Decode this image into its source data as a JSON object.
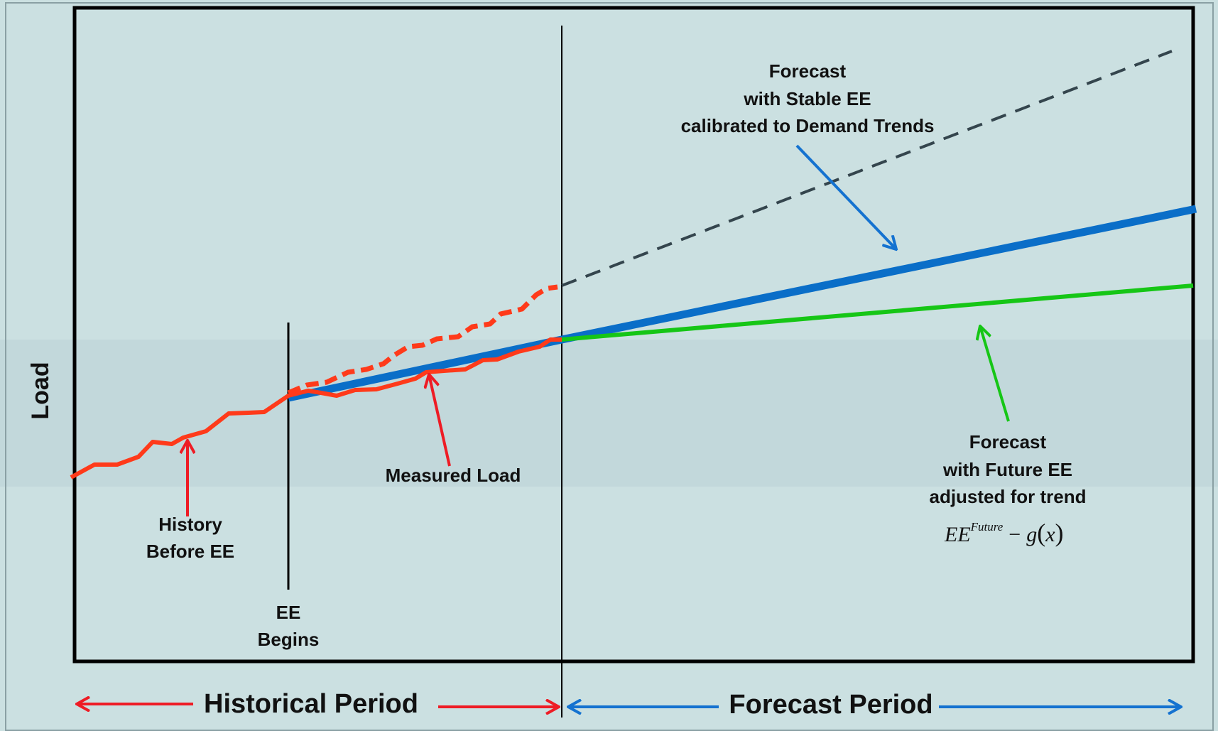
{
  "chart_data": {
    "type": "line",
    "y_axis_label": "Load",
    "annotations": {
      "forecast_stable": [
        "Forecast",
        "with Stable EE",
        "calibrated to Demand Trends"
      ],
      "forecast_future": [
        "Forecast",
        "with Future EE",
        "adjusted for trend"
      ],
      "formula": {
        "base": "EE",
        "sup": "Future",
        "minus": "−",
        "func": "g",
        "lparen": "(",
        "arg": "x",
        "rparen": ")"
      },
      "measured_load": "Measured Load",
      "history_before_ee": [
        "History",
        "Before EE"
      ],
      "ee_begins": [
        "EE",
        "Begins"
      ]
    },
    "periods": {
      "historical": "Historical Period",
      "forecast": "Forecast Period"
    },
    "colors": {
      "background": "#cbe0e1",
      "band": "#c2d9dc",
      "history": "#ff3a1a",
      "baseline_no_ee": "#ff3a1a",
      "stable_ee": "#0a6ec8",
      "future_ee": "#16c616",
      "extrapolation": "#34454d",
      "historical_arrow": "#ee1c25",
      "forecast_arrow": "#1472d0"
    }
  }
}
